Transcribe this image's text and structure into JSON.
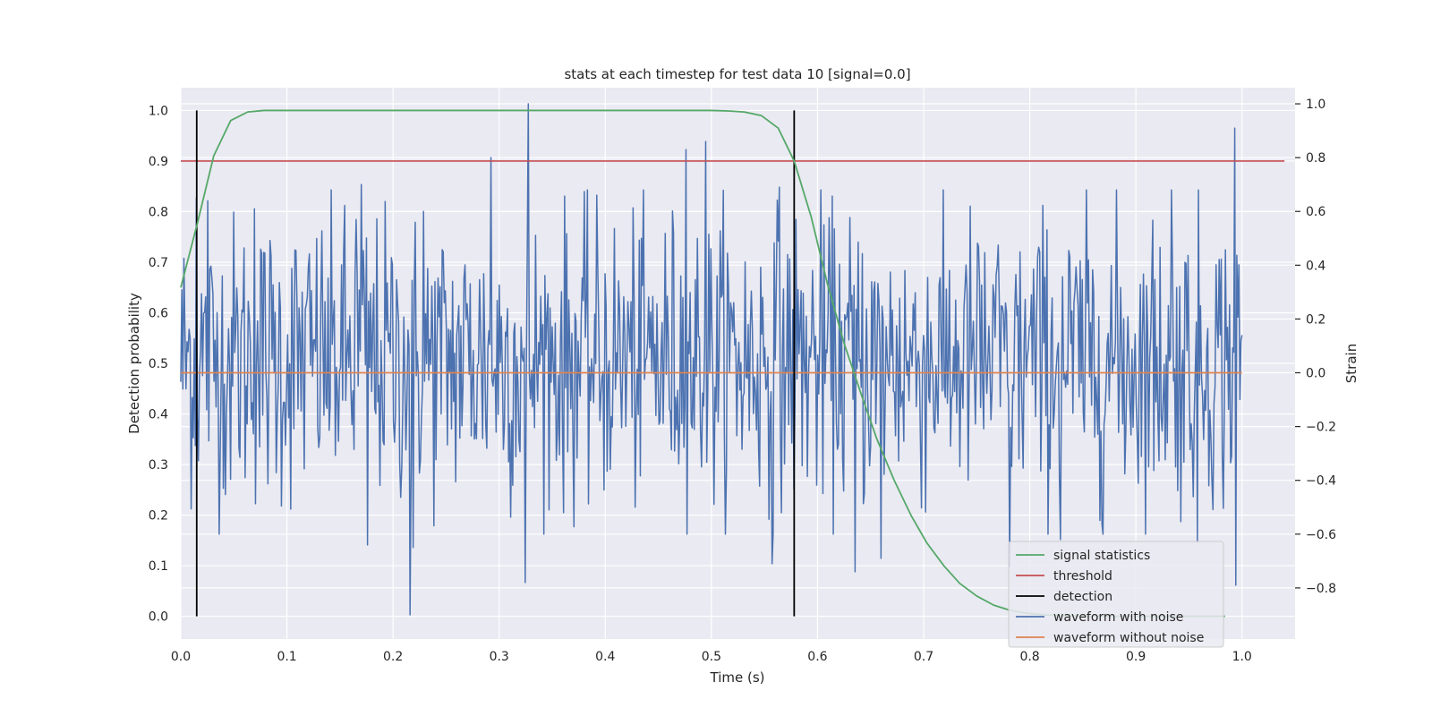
{
  "chart_data": {
    "type": "line",
    "title": "stats at each timestep for test data 10 [signal=0.0]",
    "xlabel": "Time (s)",
    "ylabel": "Detection probability",
    "ylabel_right": "Strain",
    "xlim": [
      0.0,
      1.05
    ],
    "ylim": [
      -0.045,
      1.045
    ],
    "ylim_right": [
      -0.99,
      1.06
    ],
    "xticks": [
      0.0,
      0.1,
      0.2,
      0.3,
      0.4,
      0.5,
      0.6,
      0.7,
      0.8,
      0.9,
      1.0
    ],
    "xtick_labels": [
      "0.0",
      "0.1",
      "0.2",
      "0.3",
      "0.4",
      "0.5",
      "0.6",
      "0.7",
      "0.8",
      "0.9",
      "1.0"
    ],
    "yticks": [
      0.0,
      0.1,
      0.2,
      0.3,
      0.4,
      0.5,
      0.6,
      0.7,
      0.8,
      0.9,
      1.0
    ],
    "ytick_labels": [
      "0.0",
      "0.1",
      "0.2",
      "0.3",
      "0.4",
      "0.5",
      "0.6",
      "0.7",
      "0.8",
      "0.9",
      "1.0"
    ],
    "yticks_right": [
      -0.8,
      -0.6,
      -0.4,
      -0.2,
      0.0,
      0.2,
      0.4,
      0.6,
      0.8,
      1.0
    ],
    "ytick_labels_right": [
      "−0.8",
      "−0.6",
      "−0.4",
      "−0.2",
      "0.0",
      "0.2",
      "0.4",
      "0.6",
      "0.8",
      "1.0"
    ],
    "grid": true,
    "legend_position": "bottom-right",
    "series": [
      {
        "name": "signal statistics",
        "color": "#55a868",
        "axis": "left",
        "x": [
          0.0,
          0.016,
          0.031,
          0.047,
          0.063,
          0.078,
          0.094,
          0.11,
          0.2,
          0.3,
          0.4,
          0.5,
          0.516,
          0.531,
          0.547,
          0.563,
          0.578,
          0.594,
          0.609,
          0.625,
          0.641,
          0.656,
          0.672,
          0.688,
          0.703,
          0.719,
          0.734,
          0.75,
          0.766,
          0.781,
          0.797,
          0.813,
          0.828,
          0.844,
          0.86,
          0.875,
          0.89,
          0.906,
          0.922,
          0.938,
          0.953,
          0.969,
          0.984
        ],
        "y": [
          0.65,
          0.78,
          0.91,
          0.98,
          0.997,
          1.0,
          1.0,
          1.0,
          1.0,
          1.0,
          1.0,
          1.0,
          0.999,
          0.997,
          0.99,
          0.965,
          0.9,
          0.79,
          0.66,
          0.54,
          0.44,
          0.35,
          0.27,
          0.2,
          0.145,
          0.1,
          0.065,
          0.04,
          0.022,
          0.012,
          0.006,
          0.003,
          0.0015,
          0.0008,
          0.0004,
          0.0002,
          0.0001,
          0.0001,
          0.0,
          0.0,
          0.0,
          0.0,
          0.0
        ]
      },
      {
        "name": "threshold",
        "color": "#c44e52",
        "axis": "left",
        "x": [
          0.0,
          1.04
        ],
        "y": [
          0.9,
          0.9
        ]
      },
      {
        "name": "detection",
        "color": "#000000",
        "axis": "left",
        "segments": [
          {
            "x": 0.015,
            "y": [
              0.0,
              1.0
            ]
          },
          {
            "x": 0.578,
            "y": [
              0.0,
              1.0
            ]
          }
        ]
      },
      {
        "name": "waveform with noise",
        "color": "#4c72b0",
        "axis": "right",
        "noise": {
          "x_start": 0.0,
          "x_end": 1.0,
          "n_points": 1024,
          "mean": 0.05,
          "std": 0.27,
          "spikes": [
            {
              "x": 0.015,
              "y": 0.65
            },
            {
              "x": 0.025,
              "y": 0.64
            },
            {
              "x": 0.069,
              "y": 0.61
            },
            {
              "x": 0.165,
              "y": 0.57
            },
            {
              "x": 0.17,
              "y": 0.7
            },
            {
              "x": 0.176,
              "y": -0.64
            },
            {
              "x": 0.216,
              "y": -0.9
            },
            {
              "x": 0.219,
              "y": -0.65
            },
            {
              "x": 0.229,
              "y": 0.6
            },
            {
              "x": 0.292,
              "y": 0.8
            },
            {
              "x": 0.325,
              "y": -0.78
            },
            {
              "x": 0.327,
              "y": 1.0
            },
            {
              "x": 0.476,
              "y": 0.83
            },
            {
              "x": 0.495,
              "y": 0.86
            },
            {
              "x": 0.557,
              "y": -0.71
            },
            {
              "x": 0.564,
              "y": 0.69
            },
            {
              "x": 0.635,
              "y": -0.74
            },
            {
              "x": 0.66,
              "y": -0.69
            },
            {
              "x": 0.781,
              "y": -0.72
            },
            {
              "x": 0.829,
              "y": -0.62
            },
            {
              "x": 0.934,
              "y": 0.68
            },
            {
              "x": 0.958,
              "y": -0.63
            },
            {
              "x": 0.993,
              "y": 0.91
            },
            {
              "x": 0.994,
              "y": -0.79
            }
          ]
        }
      },
      {
        "name": "waveform without noise",
        "color": "#dd8452",
        "axis": "right",
        "x": [
          0.0,
          1.0
        ],
        "y": [
          0.0,
          0.0
        ]
      }
    ]
  }
}
